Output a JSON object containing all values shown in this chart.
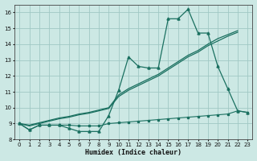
{
  "xlabel": "Humidex (Indice chaleur)",
  "ylabel": "",
  "xlim": [
    -0.5,
    23.5
  ],
  "ylim": [
    8,
    16.5
  ],
  "xticks": [
    0,
    1,
    2,
    3,
    4,
    5,
    6,
    7,
    8,
    9,
    10,
    11,
    12,
    13,
    14,
    15,
    16,
    17,
    18,
    19,
    20,
    21,
    22,
    23
  ],
  "yticks": [
    8,
    9,
    10,
    11,
    12,
    13,
    14,
    15,
    16
  ],
  "bg_color": "#cce8e4",
  "grid_color": "#a0c8c4",
  "line_color": "#1a7060",
  "x_data": [
    0,
    1,
    2,
    3,
    4,
    5,
    6,
    7,
    8,
    9,
    10,
    11,
    12,
    13,
    14,
    15,
    16,
    17,
    18,
    19,
    20,
    21,
    22,
    23
  ],
  "y_jagged": [
    9.0,
    8.6,
    8.9,
    8.9,
    8.9,
    8.7,
    8.5,
    8.5,
    8.5,
    9.5,
    11.1,
    13.2,
    12.6,
    12.5,
    12.5,
    15.6,
    15.6,
    16.2,
    14.7,
    14.7,
    12.6,
    11.2,
    9.8,
    9.7
  ],
  "y_smooth1": [
    9.0,
    8.9,
    9.05,
    9.2,
    9.35,
    9.45,
    9.6,
    9.7,
    9.85,
    10.0,
    10.8,
    11.2,
    11.5,
    11.8,
    12.1,
    12.5,
    12.9,
    13.3,
    13.6,
    14.0,
    14.35,
    14.6,
    14.85,
    9.7
  ],
  "y_smooth2": [
    9.0,
    8.85,
    9.0,
    9.15,
    9.3,
    9.4,
    9.55,
    9.65,
    9.8,
    9.95,
    10.7,
    11.1,
    11.4,
    11.7,
    12.0,
    12.4,
    12.8,
    13.2,
    13.5,
    13.9,
    14.2,
    14.5,
    14.75,
    9.7
  ],
  "y_flat": [
    9.0,
    8.6,
    8.9,
    8.9,
    8.9,
    8.9,
    8.85,
    8.85,
    8.85,
    9.0,
    9.05,
    9.1,
    9.15,
    9.2,
    9.25,
    9.3,
    9.35,
    9.4,
    9.45,
    9.5,
    9.55,
    9.6,
    9.8,
    9.7
  ]
}
